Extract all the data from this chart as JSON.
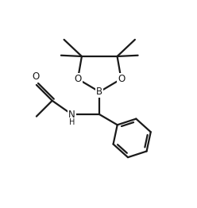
{
  "background_color": "#ffffff",
  "line_color": "#1a1a1a",
  "line_width": 1.6,
  "font_size_atoms": 8.5,
  "font_size_H": 7.0,
  "figsize": [
    2.48,
    2.62
  ],
  "dpi": 100,
  "xlim": [
    0,
    10
  ],
  "ylim": [
    0,
    10.56
  ]
}
